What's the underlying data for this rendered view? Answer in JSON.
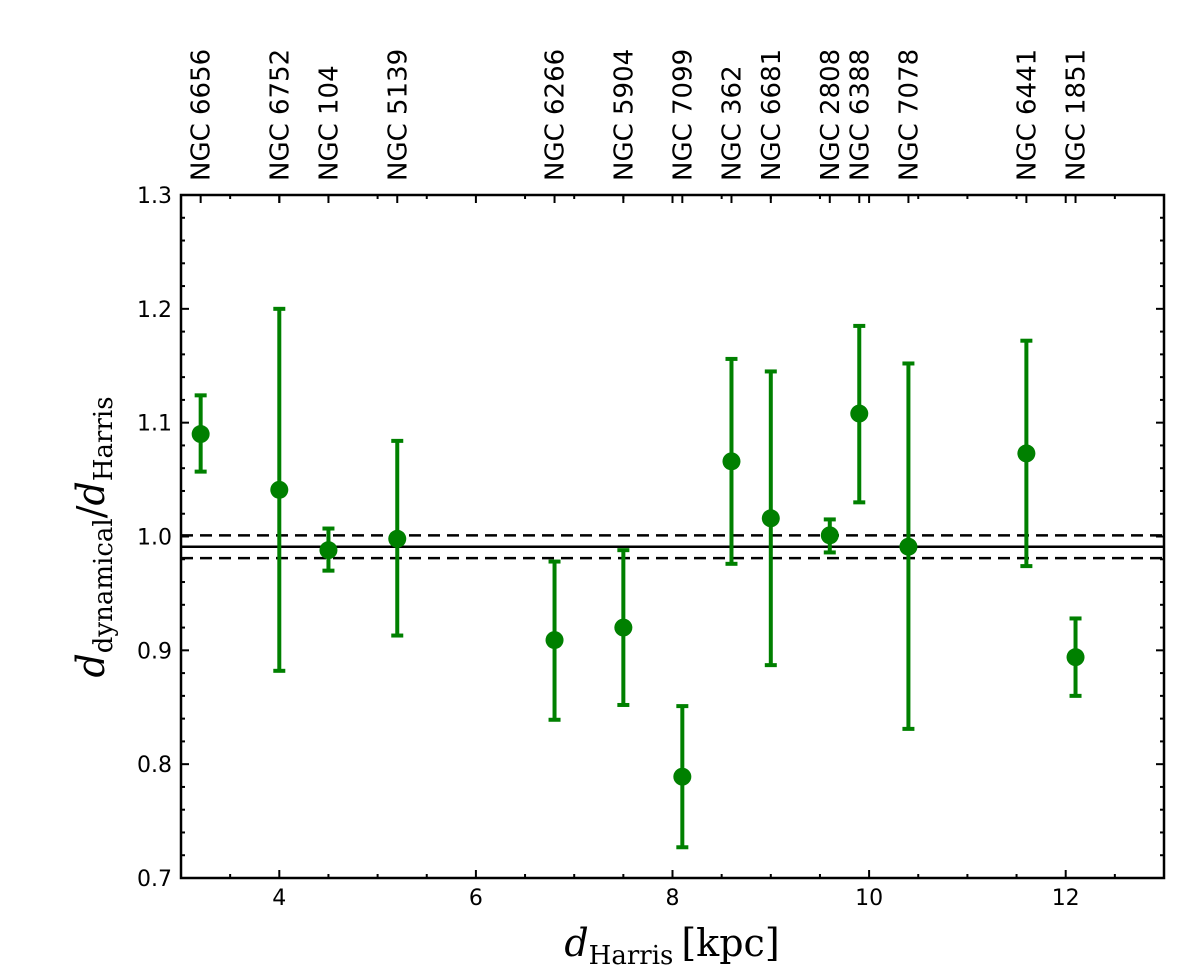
{
  "chart_data": {
    "type": "scatter",
    "title": "",
    "xlabel": {
      "base": "d",
      "sub": "Harris",
      "unit": "[kpc]"
    },
    "ylabel": {
      "base": "d",
      "sub": "dynamical",
      "sep": "/",
      "base2": "d",
      "sub2": "Harris"
    },
    "xlim": [
      3.0,
      13.0
    ],
    "ylim": [
      0.7,
      1.3
    ],
    "x_ticks": [
      4,
      6,
      8,
      10,
      12
    ],
    "x_tick_labels": [
      "4",
      "6",
      "8",
      "10",
      "12"
    ],
    "y_ticks": [
      0.7,
      0.8,
      0.9,
      1.0,
      1.1,
      1.2,
      1.3
    ],
    "y_tick_labels": [
      "0.7",
      "0.8",
      "0.9",
      "1.0",
      "1.1",
      "1.2",
      "1.3"
    ],
    "grid": false,
    "marker_color": "#008000",
    "line_color": "#000000",
    "points": [
      {
        "name": "NGC 6656",
        "x": 3.2,
        "y": 1.09,
        "ylo": 1.057,
        "yhi": 1.124
      },
      {
        "name": "NGC 6752",
        "x": 4.0,
        "y": 1.041,
        "ylo": 0.882,
        "yhi": 1.2
      },
      {
        "name": "NGC 104",
        "x": 4.5,
        "y": 0.988,
        "ylo": 0.97,
        "yhi": 1.007
      },
      {
        "name": "NGC 5139",
        "x": 5.2,
        "y": 0.998,
        "ylo": 0.913,
        "yhi": 1.084
      },
      {
        "name": "NGC 6266",
        "x": 6.8,
        "y": 0.909,
        "ylo": 0.839,
        "yhi": 0.978
      },
      {
        "name": "NGC 5904",
        "x": 7.5,
        "y": 0.92,
        "ylo": 0.852,
        "yhi": 0.988
      },
      {
        "name": "NGC 7099",
        "x": 8.1,
        "y": 0.789,
        "ylo": 0.727,
        "yhi": 0.851
      },
      {
        "name": "NGC 362",
        "x": 8.6,
        "y": 1.066,
        "ylo": 0.976,
        "yhi": 1.156
      },
      {
        "name": "NGC 6681",
        "x": 9.0,
        "y": 1.016,
        "ylo": 0.887,
        "yhi": 1.145
      },
      {
        "name": "NGC 2808",
        "x": 9.6,
        "y": 1.001,
        "ylo": 0.986,
        "yhi": 1.015
      },
      {
        "name": "NGC 6388",
        "x": 9.9,
        "y": 1.108,
        "ylo": 1.03,
        "yhi": 1.185
      },
      {
        "name": "NGC 7078",
        "x": 10.4,
        "y": 0.991,
        "ylo": 0.831,
        "yhi": 1.152
      },
      {
        "name": "NGC 6441",
        "x": 11.6,
        "y": 1.073,
        "ylo": 0.974,
        "yhi": 1.172
      },
      {
        "name": "NGC 1851",
        "x": 12.1,
        "y": 0.894,
        "ylo": 0.86,
        "yhi": 0.928
      }
    ],
    "hlines": [
      {
        "y": 0.991,
        "style": "solid"
      },
      {
        "y": 1.001,
        "style": "dashed"
      },
      {
        "y": 0.981,
        "style": "dashed"
      }
    ]
  }
}
